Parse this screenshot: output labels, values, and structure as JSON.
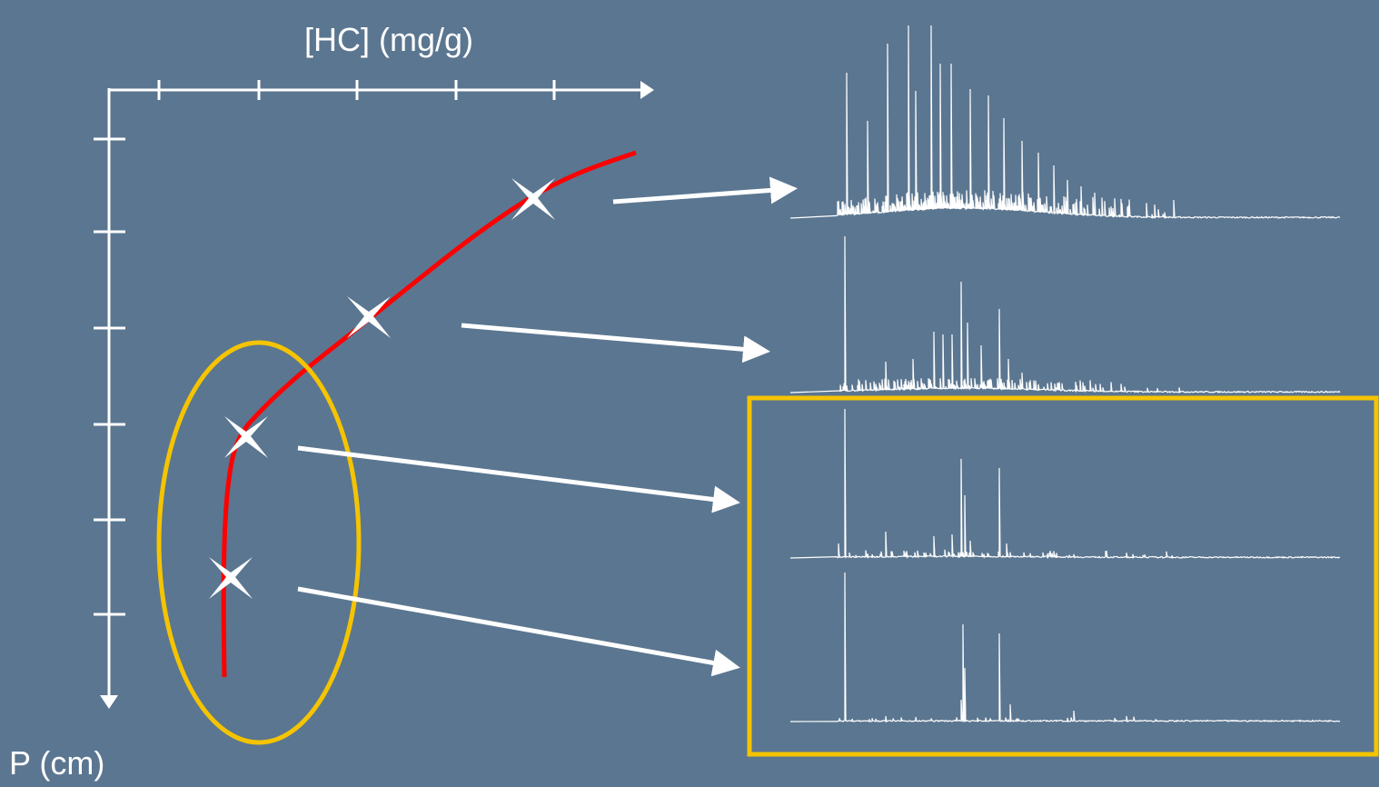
{
  "axes": {
    "x_label": "[HC] (mg/g)",
    "y_label": "P (cm)"
  }
}
